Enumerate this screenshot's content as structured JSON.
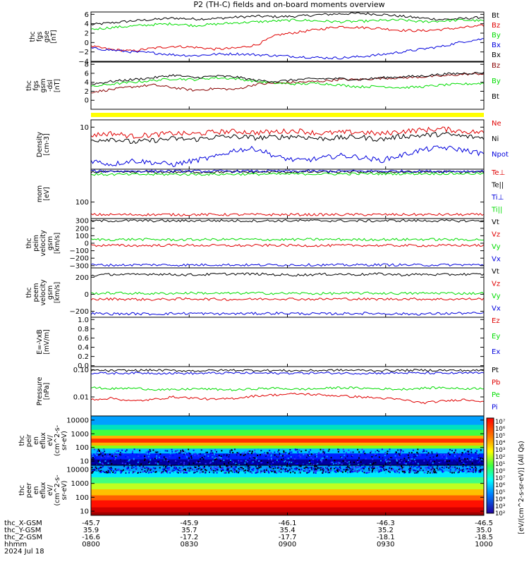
{
  "title": "P2 (TH-C) fields and on-board moments overview",
  "colors": {
    "black": "#000000",
    "red": "#e00000",
    "green": "#00dd00",
    "blue": "#0000dd",
    "darkred": "#880000",
    "yellow": "#ffff00"
  },
  "chart_data": [
    {
      "type": "line",
      "id": "fgs_gse",
      "ylabel": [
        "thc",
        "fgs",
        "gse",
        "[nT]"
      ],
      "ylim": [
        -4,
        6.5
      ],
      "yscale": "linear",
      "yticks": [
        6,
        4,
        2,
        0,
        -2,
        -4
      ],
      "ytick_labels": [
        "6",
        "4",
        "2",
        "0",
        "−2",
        "−4"
      ],
      "series": [
        {
          "name": "Bt",
          "color": "black",
          "values": [
            3.8,
            4.2,
            4.6,
            4.9,
            5.2,
            5.0,
            5.1,
            5.4,
            5.6,
            5.5,
            5.6,
            5.9,
            6.1,
            6.2,
            6.0,
            5.6,
            5.2,
            4.9,
            5.1,
            5.4
          ]
        },
        {
          "name": "Bz",
          "color": "red",
          "values": [
            -0.8,
            -1.5,
            -1.8,
            -1.2,
            -0.8,
            -1.0,
            -1.4,
            -1.2,
            -0.5,
            1.6,
            2.2,
            2.8,
            3.4,
            3.2,
            3.0,
            2.6,
            2.5,
            2.8,
            3.2,
            3.6
          ]
        },
        {
          "name": "By",
          "color": "green",
          "values": [
            2.8,
            3.2,
            3.5,
            3.8,
            4.0,
            3.6,
            3.9,
            4.2,
            4.4,
            4.6,
            4.8,
            4.6,
            4.4,
            4.5,
            4.7,
            4.8,
            4.4,
            4.6,
            4.8,
            4.6
          ]
        },
        {
          "name": "Bx",
          "color": "blue",
          "values": [
            -1.2,
            -1.6,
            -2.0,
            -2.2,
            -2.6,
            -2.8,
            -2.5,
            -2.4,
            -2.6,
            -2.8,
            -3.0,
            -3.2,
            -3.3,
            -3.0,
            -2.6,
            -2.0,
            -1.4,
            -0.8,
            0.2,
            0.8
          ]
        }
      ],
      "legend_extra": [
        "Bx"
      ]
    },
    {
      "type": "line",
      "id": "fgs_gsm",
      "ylabel": [
        "thc",
        "fgs",
        "gsm",
        "-dsl",
        "[nT]"
      ],
      "ylim": [
        -2,
        8.5
      ],
      "yscale": "linear",
      "yticks": [
        8,
        6,
        4,
        2,
        0
      ],
      "ytick_labels": [
        "8",
        "6",
        "4",
        "2",
        "0"
      ],
      "series": [
        {
          "name": "Bz",
          "color": "darkred",
          "values": [
            1.8,
            2.4,
            3.0,
            3.4,
            2.8,
            2.2,
            2.6,
            2.4,
            3.6,
            3.8,
            4.0,
            4.2,
            4.6,
            4.6,
            4.9,
            5.0,
            5.2,
            5.4,
            5.8,
            5.9
          ]
        },
        {
          "name": "By",
          "color": "green",
          "values": [
            3.0,
            3.6,
            4.0,
            4.4,
            4.8,
            4.6,
            5.0,
            4.8,
            4.2,
            3.8,
            3.6,
            3.8,
            3.4,
            3.0,
            3.1,
            2.8,
            3.0,
            3.4,
            3.6,
            3.8
          ]
        },
        {
          "name": "Bt",
          "color": "black",
          "values": [
            3.6,
            4.2,
            4.6,
            5.0,
            5.6,
            5.0,
            5.4,
            5.2,
            4.4,
            4.2,
            4.6,
            4.8,
            4.8,
            4.6,
            5.0,
            5.2,
            5.4,
            5.8,
            6.0,
            6.1
          ]
        }
      ]
    },
    {
      "type": "line",
      "id": "density",
      "ylabel": [
        "Density",
        "[cm-3]"
      ],
      "ylim": [
        2.2,
        13
      ],
      "yscale": "log",
      "yticks": [
        10
      ],
      "ytick_labels": [
        "10"
      ],
      "series": [
        {
          "name": "Ne",
          "color": "red",
          "values": [
            7.5,
            8.0,
            7.2,
            7.6,
            8.0,
            7.8,
            8.4,
            8.6,
            8.2,
            8.5,
            8.8,
            8.0,
            8.2,
            8.4,
            7.8,
            8.6,
            9.0,
            9.4,
            8.6,
            8.2
          ]
        },
        {
          "name": "Ni",
          "color": "black",
          "values": [
            6.2,
            6.6,
            5.8,
            6.2,
            6.6,
            6.4,
            7.0,
            7.1,
            6.8,
            7.0,
            7.2,
            6.6,
            6.8,
            7.0,
            6.4,
            7.2,
            7.4,
            7.8,
            7.2,
            6.8
          ]
        },
        {
          "name": "Npot",
          "color": "blue",
          "values": [
            3.0,
            2.6,
            3.0,
            2.8,
            2.6,
            3.0,
            3.4,
            4.4,
            4.6,
            3.4,
            3.0,
            3.2,
            3.6,
            3.4,
            3.0,
            3.6,
            4.4,
            4.8,
            4.4,
            3.8
          ]
        }
      ]
    },
    {
      "type": "line",
      "id": "moments_temp",
      "ylabel": [
        "mom",
        "[eV]"
      ],
      "ylim": [
        30,
        1100
      ],
      "yscale": "log",
      "yticks": [
        100
      ],
      "ytick_labels": [
        "100"
      ],
      "series": [
        {
          "name": "Te⊥",
          "color": "red",
          "values": [
            40,
            40,
            40,
            40,
            40,
            40,
            40,
            40,
            40,
            40,
            40,
            40,
            40,
            40,
            40,
            40,
            40,
            40,
            40,
            40
          ]
        },
        {
          "name": "Te||",
          "color": "black",
          "values": [
            900,
            900,
            900,
            900,
            900,
            900,
            900,
            900,
            900,
            900,
            900,
            900,
            900,
            900,
            900,
            900,
            900,
            900,
            900,
            900
          ]
        },
        {
          "name": "Ti⊥",
          "color": "blue",
          "values": [
            950,
            950,
            950,
            950,
            950,
            950,
            950,
            950,
            950,
            950,
            950,
            950,
            950,
            950,
            950,
            950,
            950,
            950,
            950,
            950
          ]
        },
        {
          "name": "Ti||",
          "color": "green",
          "values": [
            750,
            750,
            750,
            750,
            760,
            760,
            760,
            770,
            770,
            770,
            780,
            780,
            780,
            790,
            790,
            790,
            800,
            800,
            800,
            800
          ]
        }
      ]
    },
    {
      "type": "line",
      "id": "peim_velocity",
      "ylabel": [
        "thc",
        "peim",
        "velocity",
        "gsm",
        "[km/s]"
      ],
      "ylim": [
        -330,
        330
      ],
      "yscale": "linear",
      "yticks": [
        300,
        200,
        100,
        0,
        -100,
        -200,
        -300
      ],
      "ytick_labels": [
        "300",
        "200",
        "100",
        "0",
        "−100",
        "−200",
        "−300"
      ],
      "series": [
        {
          "name": "Vt",
          "color": "black",
          "values": [
            298,
            300,
            302,
            300,
            298,
            301,
            303,
            300,
            299,
            300,
            302,
            301,
            300,
            298,
            300,
            303,
            301,
            300,
            299,
            300
          ]
        },
        {
          "name": "Vz",
          "color": "red",
          "values": [
            -30,
            -28,
            -32,
            -30,
            -26,
            -28,
            -30,
            -32,
            -30,
            -28,
            -30,
            -32,
            -30,
            -28,
            -30,
            -30,
            -32,
            -30,
            -28,
            -30
          ]
        },
        {
          "name": "Vy",
          "color": "green",
          "values": [
            50,
            48,
            52,
            50,
            46,
            48,
            50,
            52,
            50,
            48,
            50,
            52,
            50,
            48,
            50,
            50,
            52,
            50,
            48,
            50
          ]
        },
        {
          "name": "Vx",
          "color": "blue",
          "values": [
            -290,
            -292,
            -290,
            -288,
            -292,
            -290,
            -288,
            -290,
            -292,
            -290,
            -288,
            -290,
            -292,
            -290,
            -288,
            -290,
            -292,
            -290,
            -288,
            -290
          ]
        }
      ]
    },
    {
      "type": "line",
      "id": "peem_velocity",
      "ylabel": [
        "thc",
        "peem",
        "velocity",
        "gsm",
        "[km/s]"
      ],
      "ylim": [
        -270,
        310
      ],
      "yscale": "linear",
      "yticks": [
        200,
        0,
        -200
      ],
      "ytick_labels": [
        "200",
        "0",
        "−200"
      ],
      "series": [
        {
          "name": "Vt",
          "color": "black",
          "values": [
            220,
            235,
            230,
            240,
            232,
            228,
            236,
            240,
            238,
            230,
            226,
            234,
            236,
            232,
            240,
            228,
            234,
            230,
            236,
            232
          ]
        },
        {
          "name": "Vz",
          "color": "red",
          "values": [
            -60,
            -55,
            -58,
            -62,
            -56,
            -54,
            -58,
            -60,
            -56,
            -52,
            -56,
            -58,
            -54,
            -56,
            -58,
            -54,
            -56,
            -58,
            -56,
            -54
          ]
        },
        {
          "name": "Vy",
          "color": "green",
          "values": [
            10,
            14,
            12,
            8,
            12,
            16,
            10,
            12,
            14,
            10,
            12,
            8,
            10,
            14,
            12,
            10,
            12,
            14,
            10,
            12
          ]
        },
        {
          "name": "Vx",
          "color": "blue",
          "values": [
            -225,
            -230,
            -228,
            -232,
            -226,
            -224,
            -230,
            -228,
            -226,
            -222,
            -226,
            -230,
            -228,
            -224,
            -226,
            -230,
            -232,
            -226,
            -222,
            -226
          ]
        }
      ]
    },
    {
      "type": "line",
      "id": "efield",
      "ylabel": [
        "E=-VxB",
        "[mV/m]"
      ],
      "ylim": [
        -0.02,
        1.05
      ],
      "yscale": "linear",
      "yticks": [
        1.0,
        0.8,
        0.6,
        0.4,
        0.2,
        0.0
      ],
      "ytick_labels": [
        "1.0",
        "0.8",
        "0.6",
        "0.4",
        "0.2",
        "0.0"
      ],
      "series": [
        {
          "name": "Ez",
          "color": "red",
          "values": []
        },
        {
          "name": "Ey",
          "color": "green",
          "values": []
        },
        {
          "name": "Ex",
          "color": "blue",
          "values": []
        }
      ]
    },
    {
      "type": "line",
      "id": "pressure",
      "ylabel": [
        "Pressure",
        "[nPa]"
      ],
      "ylim": [
        0.002,
        0.13
      ],
      "yscale": "log",
      "yticks": [
        0.1,
        0.01
      ],
      "ytick_labels": [
        "0.10",
        "0.01"
      ],
      "series": [
        {
          "name": "Pt",
          "color": "black",
          "values": [
            0.095,
            0.092,
            0.094,
            0.096,
            0.093,
            0.091,
            0.094,
            0.096,
            0.095,
            0.093,
            0.092,
            0.094,
            0.096,
            0.095,
            0.093,
            0.094,
            0.096,
            0.095,
            0.094,
            0.093
          ]
        },
        {
          "name": "Pb",
          "color": "red",
          "values": [
            0.008,
            0.009,
            0.007,
            0.008,
            0.01,
            0.009,
            0.008,
            0.009,
            0.011,
            0.012,
            0.013,
            0.012,
            0.011,
            0.01,
            0.009,
            0.008,
            0.006,
            0.007,
            0.008,
            0.007
          ]
        },
        {
          "name": "Pe",
          "color": "green",
          "values": [
            0.022,
            0.02,
            0.021,
            0.019,
            0.018,
            0.02,
            0.019,
            0.018,
            0.02,
            0.021,
            0.019,
            0.02,
            0.022,
            0.021,
            0.02,
            0.019,
            0.021,
            0.022,
            0.02,
            0.021
          ]
        },
        {
          "name": "Pi",
          "color": "blue",
          "values": [
            0.075,
            0.074,
            0.076,
            0.075,
            0.074,
            0.073,
            0.075,
            0.076,
            0.075,
            0.074,
            0.075,
            0.076,
            0.075,
            0.074,
            0.075,
            0.076,
            0.075,
            0.074,
            0.075,
            0.076
          ]
        }
      ]
    },
    {
      "type": "heatmap",
      "id": "peir_spec",
      "ylabel": [
        "thc",
        "peir",
        "en",
        "eflux",
        "eV/",
        "(cm^2-s-",
        "sr-eV)"
      ],
      "ylim": [
        5,
        20000
      ],
      "yscale": "log",
      "yticks": [
        10000,
        1000,
        100,
        10
      ],
      "ytick_labels": [
        "10000",
        "1000",
        "100",
        "10"
      ]
    },
    {
      "type": "heatmap",
      "id": "peer_spec",
      "ylabel": [
        "thc",
        "peer",
        "en",
        "eflux",
        "eV/",
        "(cm^2-s-",
        "sr-eV)"
      ],
      "ylim": [
        5,
        20000
      ],
      "yscale": "log",
      "yticks": [
        10000,
        1000,
        100,
        10
      ],
      "ytick_labels": [
        "10000",
        "1000",
        "100",
        "10"
      ]
    }
  ],
  "colorbar": {
    "title": "[eV/(cm^2-s-sr-eV)] (All Qs)",
    "labels": [
      "10^7",
      "10^6",
      "10^5",
      "10^4",
      "10^3",
      "10^2",
      "10^1",
      "10^0",
      "10^7",
      "10^6",
      "10^5",
      "10^4",
      "10^3",
      "10^2"
    ]
  },
  "xaxis": {
    "row_labels": [
      "thc_X-GSM",
      "thc_Y-GSM",
      "thc_Z-GSM",
      "hhmm",
      "2024 Jul 18"
    ],
    "ticks": [
      {
        "x": "-45.7",
        "y": "35.9",
        "z": "-16.6",
        "hhmm": "0800"
      },
      {
        "x": "-45.9",
        "y": "35.7",
        "z": "-17.2",
        "hhmm": "0830"
      },
      {
        "x": "-46.1",
        "y": "35.4",
        "z": "-17.7",
        "hhmm": "0900"
      },
      {
        "x": "-46.3",
        "y": "35.2",
        "z": "-18.1",
        "hhmm": "0930"
      },
      {
        "x": "-46.5",
        "y": "35.0",
        "z": "-18.5",
        "hhmm": "1000"
      }
    ]
  }
}
